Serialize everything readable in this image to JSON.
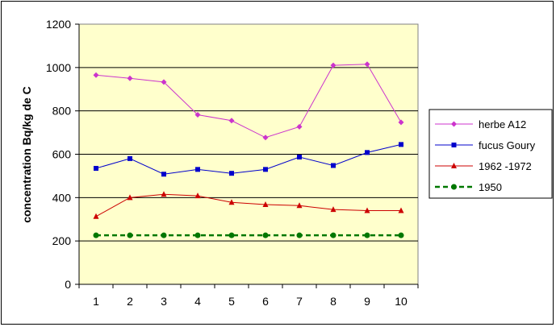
{
  "chart_data": {
    "type": "line",
    "title": "",
    "xlabel": "",
    "ylabel": "concentration Bq/kg de C",
    "x": [
      1,
      2,
      3,
      4,
      5,
      6,
      7,
      8,
      9,
      10
    ],
    "ylim": [
      0,
      1200
    ],
    "yticks": [
      0,
      200,
      400,
      600,
      800,
      1000,
      1200
    ],
    "grid": "horizontal",
    "legend_position": "right",
    "plot_background": "#ffffcc",
    "series": [
      {
        "name": "herbe A12",
        "color": "#cc33cc",
        "marker": "diamond",
        "dash": "solid",
        "values": [
          965,
          950,
          933,
          782,
          755,
          677,
          727,
          1010,
          1015,
          747
        ]
      },
      {
        "name": "fucus Goury",
        "color": "#0000cc",
        "marker": "square",
        "dash": "solid",
        "values": [
          535,
          580,
          508,
          530,
          512,
          530,
          587,
          548,
          608,
          645
        ]
      },
      {
        "name": "1962 -1972",
        "color": "#cc0000",
        "marker": "triangle",
        "dash": "solid",
        "values": [
          313,
          400,
          415,
          408,
          378,
          368,
          363,
          345,
          340,
          340
        ]
      },
      {
        "name": "1950",
        "color": "#007700",
        "marker": "circle",
        "dash": "dashed",
        "values": [
          226,
          226,
          226,
          226,
          226,
          226,
          226,
          226,
          226,
          226
        ]
      }
    ]
  }
}
